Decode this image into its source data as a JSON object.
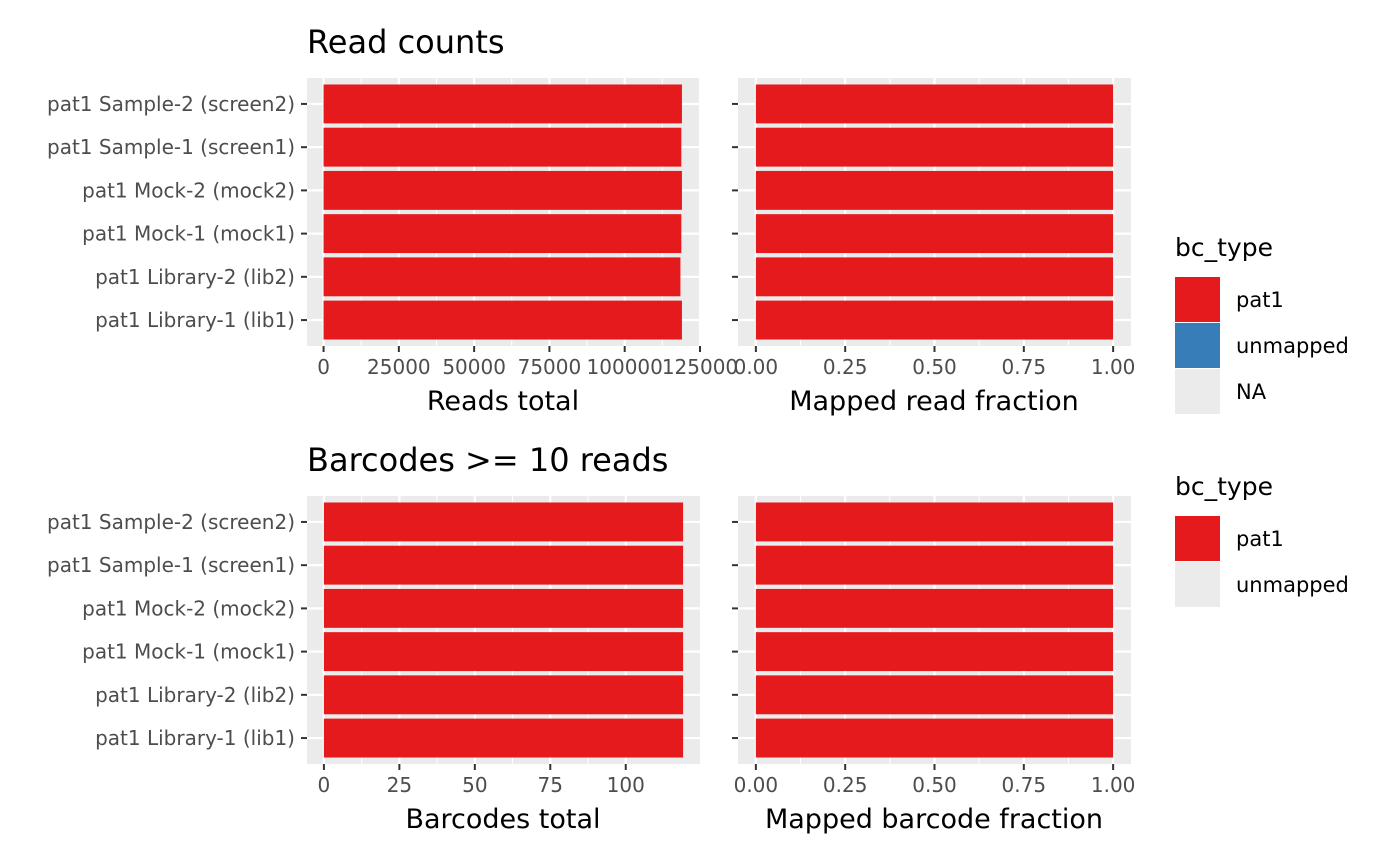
{
  "colors": {
    "panel_bg": "#ebebeb",
    "grid": "#ffffff",
    "tick_text": "#4d4d4d",
    "pat1": "#e41a1c",
    "unmapped": "#377eb8",
    "na": "#ebebeb"
  },
  "chart_data": [
    {
      "type": "bar",
      "orientation": "horizontal",
      "title": "Read counts",
      "xlabel": "Reads total",
      "categories": [
        "pat1 Library-1 (lib1)",
        "pat1 Library-2 (lib2)",
        "pat1 Mock-1 (mock1)",
        "pat1 Mock-2 (mock2)",
        "pat1 Sample-1 (screen1)",
        "pat1 Sample-2 (screen2)"
      ],
      "series": [
        {
          "name": "pat1",
          "values": [
            119000,
            118500,
            118800,
            119000,
            118800,
            119000
          ]
        }
      ],
      "xlim": [
        -5500,
        125000
      ],
      "xticks": [
        0,
        25000,
        50000,
        75000,
        100000,
        125000
      ],
      "xtick_labels": [
        "0",
        "25000",
        "50000",
        "75000",
        "100000",
        "125000"
      ]
    },
    {
      "type": "bar",
      "orientation": "horizontal",
      "title": "",
      "xlabel": "Mapped read fraction",
      "categories": [
        "pat1 Library-1 (lib1)",
        "pat1 Library-2 (lib2)",
        "pat1 Mock-1 (mock1)",
        "pat1 Mock-2 (mock2)",
        "pat1 Sample-1 (screen1)",
        "pat1 Sample-2 (screen2)"
      ],
      "series": [
        {
          "name": "pat1",
          "values": [
            1,
            1,
            1,
            1,
            1,
            1
          ]
        }
      ],
      "xlim": [
        -0.05,
        1.05
      ],
      "xticks": [
        0,
        0.25,
        0.5,
        0.75,
        1
      ],
      "xtick_labels": [
        "0.00",
        "0.25",
        "0.50",
        "0.75",
        "1.00"
      ]
    },
    {
      "type": "bar",
      "orientation": "horizontal",
      "title": "Barcodes >= 10 reads",
      "xlabel": "Barcodes total",
      "categories": [
        "pat1 Library-1 (lib1)",
        "pat1 Library-2 (lib2)",
        "pat1 Mock-1 (mock1)",
        "pat1 Mock-2 (mock2)",
        "pat1 Sample-1 (screen1)",
        "pat1 Sample-2 (screen2)"
      ],
      "series": [
        {
          "name": "pat1",
          "values": [
            119,
            119,
            119,
            119,
            119,
            119
          ]
        }
      ],
      "xlim": [
        -5.6,
        124.6
      ],
      "xticks": [
        0,
        25,
        50,
        75,
        100
      ],
      "xtick_labels": [
        "0",
        "25",
        "50",
        "75",
        "100"
      ]
    },
    {
      "type": "bar",
      "orientation": "horizontal",
      "title": "",
      "xlabel": "Mapped barcode fraction",
      "categories": [
        "pat1 Library-1 (lib1)",
        "pat1 Library-2 (lib2)",
        "pat1 Mock-1 (mock1)",
        "pat1 Mock-2 (mock2)",
        "pat1 Sample-1 (screen1)",
        "pat1 Sample-2 (screen2)"
      ],
      "series": [
        {
          "name": "pat1",
          "values": [
            1,
            1,
            1,
            1,
            1,
            1
          ]
        }
      ],
      "xlim": [
        -0.05,
        1.05
      ],
      "xticks": [
        0,
        0.25,
        0.5,
        0.75,
        1
      ],
      "xtick_labels": [
        "0.00",
        "0.25",
        "0.50",
        "0.75",
        "1.00"
      ]
    }
  ],
  "legends": [
    {
      "title": "bc_type",
      "items": [
        {
          "label": "pat1",
          "color": "#e41a1c"
        },
        {
          "label": "unmapped",
          "color": "#377eb8"
        },
        {
          "label": "NA",
          "color": "#ebebeb"
        }
      ]
    },
    {
      "title": "bc_type",
      "items": [
        {
          "label": "pat1",
          "color": "#e41a1c"
        },
        {
          "label": "unmapped",
          "color": "#ebebeb"
        }
      ]
    }
  ]
}
